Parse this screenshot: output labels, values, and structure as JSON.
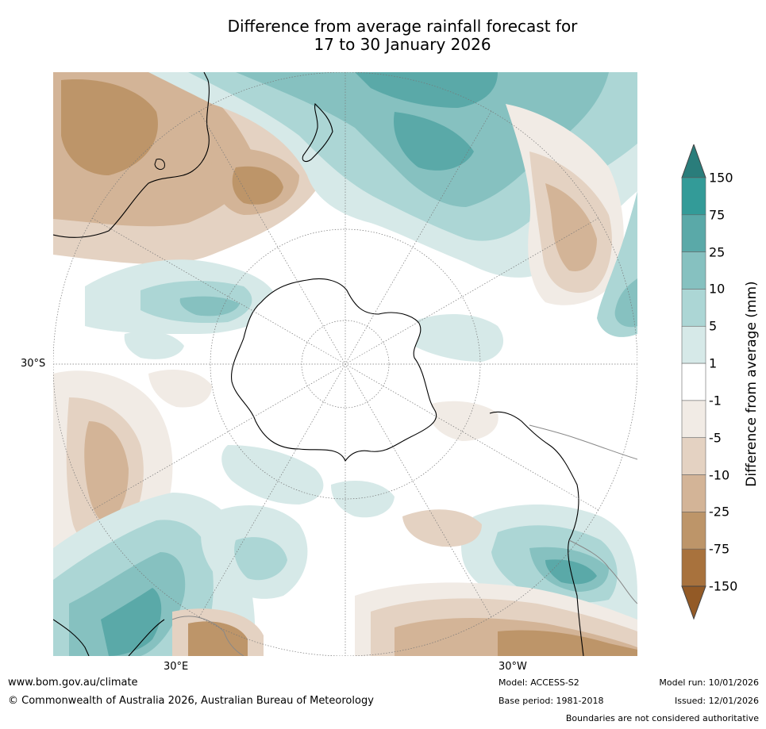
{
  "title": {
    "line1": "Difference from average rainfall forecast for",
    "line2": "17 to 30 January 2026"
  },
  "map": {
    "latitude_label": "30°S",
    "longitude_labels": [
      "30°E",
      "30°W"
    ]
  },
  "legend": {
    "title": "Difference from average (mm)",
    "ticks": [
      "150",
      "75",
      "25",
      "10",
      "5",
      "1",
      "-1",
      "-5",
      "-10",
      "-25",
      "-75",
      "-150"
    ],
    "colors": {
      "over": "#2a7d7b",
      "bins": [
        "#339b98",
        "#5aa9a8",
        "#86c1c0",
        "#acd6d5",
        "#d6e9e8",
        "#ffffff",
        "#f1ebe5",
        "#e4d2c2",
        "#d3b497",
        "#bd9569",
        "#a8723d"
      ],
      "under": "#935a26"
    }
  },
  "footer": {
    "website": "www.bom.gov.au/climate",
    "copyright": "© Commonwealth of Australia 2026, Australian Bureau of Meteorology",
    "model": "Model: ACCESS-S2",
    "base_period": "Base period: 1981-2018",
    "model_run": "Model run: 10/01/2026",
    "issued": "Issued: 12/01/2026",
    "disclaimer": "Boundaries are not considered authoritative"
  }
}
